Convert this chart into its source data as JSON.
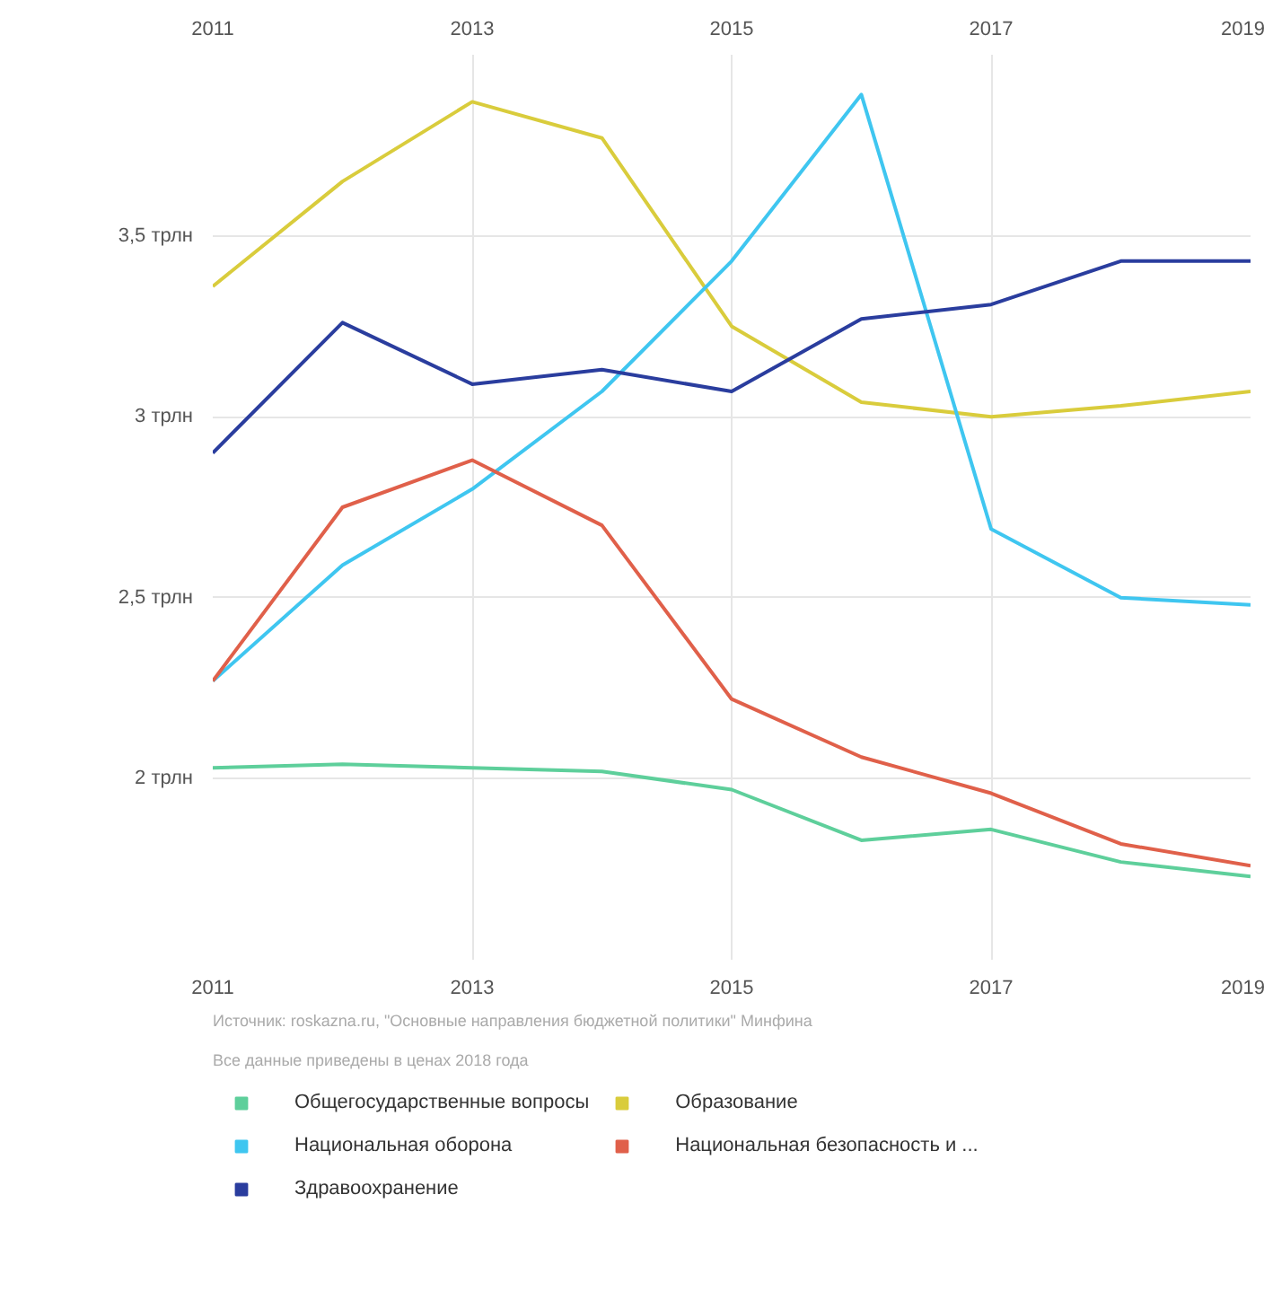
{
  "chart_data": {
    "type": "line",
    "x": [
      2011,
      2012,
      2013,
      2014,
      2015,
      2016,
      2017,
      2018,
      2019
    ],
    "series": [
      {
        "name": "Общегосударственные вопросы",
        "color": "#5ecf9b",
        "values": [
          2.03,
          2.04,
          2.03,
          2.02,
          1.97,
          1.83,
          1.86,
          1.77,
          1.73
        ]
      },
      {
        "name": "Образование",
        "color": "#d9cc3c",
        "values": [
          3.36,
          3.65,
          3.87,
          3.77,
          3.25,
          3.04,
          3.0,
          3.03,
          3.07
        ]
      },
      {
        "name": "Национальная оборона",
        "color": "#3fc6f0",
        "values": [
          2.27,
          2.59,
          2.8,
          3.07,
          3.43,
          3.89,
          2.69,
          2.5,
          2.48
        ]
      },
      {
        "name": "Национальная безопасность и ...",
        "color": "#e0604a",
        "values": [
          2.27,
          2.75,
          2.88,
          2.7,
          2.22,
          2.06,
          1.96,
          1.82,
          1.76
        ]
      },
      {
        "name": "Здравоохранение",
        "color": "#2a3d9e",
        "values": [
          2.9,
          3.26,
          3.09,
          3.13,
          3.07,
          3.27,
          3.31,
          3.43,
          3.43
        ]
      }
    ],
    "xlim": [
      2011,
      2019
    ],
    "xticks": [
      2011,
      2013,
      2015,
      2017,
      2019
    ],
    "x2lim": [
      2011,
      2019
    ],
    "x2ticks": [
      2011,
      2013,
      2015,
      2017,
      2019
    ],
    "ylim": [
      1.5,
      4.0
    ],
    "yticks": [
      {
        "value": 2,
        "label": "2 трлн"
      },
      {
        "value": 2.5,
        "label": "2,5 трлн"
      },
      {
        "value": 3,
        "label": "3 трлн"
      },
      {
        "value": 3.5,
        "label": "3,5 трлн"
      }
    ],
    "annotations": [
      "Источник: roskazna.ru, \"Основные направления бюджетной политики\" Минфина",
      "Все данные приведены в ценах 2018 года"
    ],
    "grid": true,
    "legend": "bottom",
    "marker": "none",
    "line_style": "solid"
  }
}
